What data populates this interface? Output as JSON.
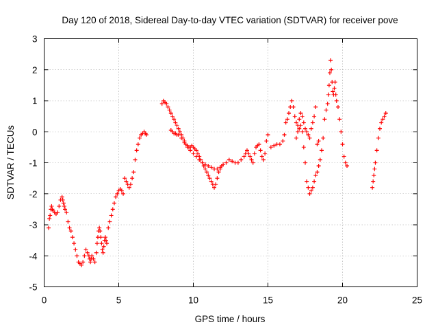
{
  "chart_data": {
    "type": "scatter",
    "title": "Day 120 of 2018, Sidereal Day-to-day VTEC variation (SDTVAR) for receiver pove",
    "xlabel": "GPS time / hours",
    "ylabel": "SDTVAR / TECUs",
    "xlim": [
      0,
      25
    ],
    "ylim": [
      -5,
      3
    ],
    "xticks": [
      0,
      5,
      10,
      15,
      20,
      25
    ],
    "yticks": [
      -5,
      -4,
      -3,
      -2,
      -1,
      0,
      1,
      2,
      3
    ],
    "grid": true,
    "marker": "+",
    "color": "#ff0000",
    "series": [
      {
        "name": "SDTVAR",
        "x": [
          0.3,
          0.35,
          0.4,
          0.45,
          0.5,
          0.55,
          0.6,
          0.7,
          0.8,
          0.9,
          1.0,
          1.1,
          1.2,
          1.25,
          1.3,
          1.35,
          1.4,
          1.5,
          1.6,
          1.7,
          1.8,
          1.9,
          2.0,
          2.1,
          2.2,
          2.3,
          2.4,
          2.5,
          2.6,
          2.7,
          2.8,
          2.9,
          3.0,
          3.05,
          3.1,
          3.15,
          3.2,
          3.3,
          3.4,
          3.5,
          3.55,
          3.6,
          3.65,
          3.7,
          3.75,
          3.8,
          3.85,
          3.9,
          3.95,
          4.0,
          4.05,
          4.1,
          4.15,
          4.2,
          4.3,
          4.4,
          4.5,
          4.6,
          4.7,
          4.8,
          4.9,
          5.0,
          5.1,
          5.2,
          5.3,
          5.4,
          5.5,
          5.6,
          5.7,
          5.8,
          5.9,
          6.0,
          6.1,
          6.2,
          6.3,
          6.4,
          6.5,
          6.6,
          6.7,
          6.8,
          6.85,
          7.9,
          8.0,
          8.1,
          8.2,
          8.3,
          8.4,
          8.5,
          8.6,
          8.7,
          8.8,
          8.9,
          9.0,
          9.1,
          9.2,
          9.3,
          9.4,
          9.5,
          9.6,
          9.7,
          9.8,
          9.9,
          10.0,
          10.1,
          10.2,
          10.3,
          10.4,
          10.5,
          10.6,
          10.7,
          10.8,
          10.9,
          11.0,
          11.1,
          11.2,
          11.3,
          11.4,
          11.5,
          11.6,
          11.7,
          11.8,
          8.5,
          8.6,
          8.7,
          8.8,
          8.9,
          9.0,
          9.2,
          9.4,
          9.6,
          9.8,
          10.0,
          10.2,
          10.4,
          10.6,
          10.8,
          11.0,
          11.2,
          11.4,
          11.6,
          11.8,
          11.9,
          12.0,
          12.2,
          12.4,
          12.6,
          12.8,
          13.0,
          13.2,
          13.4,
          13.5,
          13.6,
          13.7,
          13.8,
          13.9,
          14.0,
          14.1,
          14.2,
          14.3,
          14.4,
          14.5,
          14.6,
          14.7,
          14.8,
          14.9,
          15.0,
          15.2,
          15.4,
          15.6,
          15.8,
          16.0,
          16.1,
          16.2,
          16.3,
          16.4,
          16.5,
          16.6,
          16.7,
          16.8,
          16.9,
          17.0,
          17.1,
          17.2,
          17.3,
          17.4,
          17.5,
          17.6,
          17.7,
          17.8,
          17.9,
          18.0,
          18.1,
          18.2,
          18.3,
          18.4,
          16.9,
          17.0,
          17.1,
          17.2,
          17.3,
          17.4,
          17.5,
          17.6,
          17.7,
          17.8,
          17.9,
          18.0,
          18.1,
          18.2,
          18.3,
          18.4,
          18.5,
          18.6,
          18.7,
          18.8,
          18.9,
          19.0,
          19.05,
          19.1,
          19.15,
          19.2,
          19.25,
          19.3,
          19.35,
          19.4,
          19.45,
          19.5,
          19.55,
          19.6,
          19.7,
          19.8,
          19.9,
          20.0,
          20.1,
          20.2,
          20.3,
          22.0,
          22.05,
          22.1,
          22.15,
          22.2,
          22.3,
          22.4,
          22.5,
          22.6,
          22.7,
          22.8,
          22.9
        ],
        "y": [
          -3.1,
          -2.8,
          -2.7,
          -2.5,
          -2.4,
          -2.5,
          -2.55,
          -2.6,
          -2.65,
          -2.6,
          -2.4,
          -2.2,
          -2.1,
          -2.2,
          -2.3,
          -2.4,
          -2.5,
          -2.6,
          -2.9,
          -3.1,
          -3.2,
          -3.4,
          -3.6,
          -3.8,
          -4.0,
          -4.2,
          -4.25,
          -4.3,
          -4.2,
          -4.0,
          -3.8,
          -3.9,
          -4.0,
          -4.1,
          -4.2,
          -4.1,
          -4.0,
          -4.1,
          -4.2,
          -3.9,
          -3.6,
          -3.4,
          -3.2,
          -3.1,
          -3.2,
          -3.4,
          -3.6,
          -3.8,
          -3.9,
          -3.7,
          -3.5,
          -3.4,
          -3.5,
          -3.6,
          -3.1,
          -2.9,
          -2.7,
          -2.5,
          -2.3,
          -2.1,
          -2.0,
          -1.9,
          -1.85,
          -1.9,
          -2.0,
          -1.5,
          -1.6,
          -1.7,
          -1.8,
          -1.7,
          -1.5,
          -1.3,
          -0.9,
          -0.6,
          -0.4,
          -0.2,
          -0.1,
          -0.05,
          0.0,
          -0.05,
          -0.1,
          0.9,
          1.0,
          0.95,
          0.9,
          0.8,
          0.7,
          0.6,
          0.5,
          0.4,
          0.3,
          0.2,
          0.1,
          0.0,
          -0.1,
          -0.2,
          -0.3,
          -0.4,
          -0.45,
          -0.5,
          -0.5,
          -0.45,
          -0.5,
          -0.55,
          -0.6,
          -0.7,
          -0.8,
          -0.9,
          -1.0,
          -1.1,
          -1.2,
          -1.3,
          -1.4,
          -1.5,
          -1.6,
          -1.7,
          -1.8,
          -1.7,
          -1.5,
          -1.3,
          -1.2,
          0.05,
          0.0,
          -0.05,
          -0.05,
          -0.1,
          -0.1,
          -0.2,
          -0.35,
          -0.5,
          -0.6,
          -0.7,
          -0.8,
          -0.9,
          -1.0,
          -1.05,
          -1.1,
          -1.15,
          -1.2,
          -1.2,
          -1.15,
          -1.1,
          -1.05,
          -1.0,
          -0.9,
          -0.95,
          -1.0,
          -1.0,
          -0.9,
          -0.8,
          -0.7,
          -0.6,
          -0.7,
          -0.8,
          -0.9,
          -1.0,
          -0.7,
          -0.5,
          -0.45,
          -0.4,
          -0.6,
          -0.8,
          -0.9,
          -0.7,
          -0.3,
          -0.1,
          -0.5,
          -0.45,
          -0.4,
          -0.4,
          -0.3,
          -0.1,
          0.3,
          0.4,
          0.6,
          0.8,
          1.0,
          0.8,
          0.5,
          0.3,
          0.2,
          0.4,
          0.6,
          0.5,
          0.3,
          0.1,
          0.0,
          -0.1,
          -0.2,
          0.1,
          0.3,
          0.5,
          0.8,
          -0.4,
          -0.3,
          -0.2,
          0.0,
          0.1,
          0.2,
          0.0,
          -0.5,
          -1.0,
          -1.6,
          -1.8,
          -2.0,
          -1.9,
          -1.8,
          -1.6,
          -1.4,
          -1.3,
          -1.1,
          -0.9,
          -0.6,
          -0.2,
          0.4,
          0.7,
          0.9,
          1.2,
          1.5,
          1.9,
          2.3,
          2.0,
          1.6,
          1.3,
          1.2,
          1.4,
          1.6,
          1.2,
          1.0,
          0.8,
          0.4,
          0.0,
          -0.4,
          -0.8,
          -1.0,
          -1.1,
          -1.8,
          -1.6,
          -1.4,
          -1.2,
          -1.0,
          -0.6,
          -0.2,
          0.1,
          0.3,
          0.4,
          0.5,
          0.6
        ]
      }
    ]
  }
}
